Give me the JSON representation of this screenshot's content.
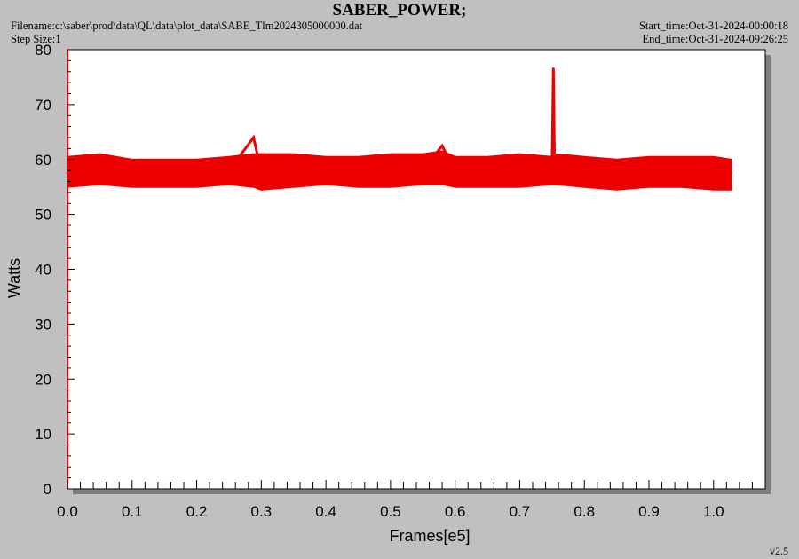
{
  "header": {
    "title": "SABER_POWER;",
    "filename": "Filename:c:\\saber\\prod\\data\\QL\\data\\plot_data\\SABE_Tlm2024305000000.dat",
    "step_size": "Step Size:1",
    "start_time": "Start_time:Oct-31-2024-00:00:18",
    "end_time": "End_time:Oct-31-2024-09:26:25"
  },
  "footer": {
    "version": "v2.5"
  },
  "colors": {
    "background": "#c0c0c0",
    "plot_area": "#ffffff",
    "shadow": "#7f7f7f",
    "series": "#ee0000"
  },
  "chart_data": {
    "type": "line",
    "title": "SABER_POWER;",
    "xlabel": "Frames[e5]",
    "ylabel": "Watts",
    "xlim": [
      0.0,
      1.08
    ],
    "ylim": [
      0,
      80
    ],
    "x_ticks": [
      "0.0",
      "0.1",
      "0.2",
      "0.3",
      "0.4",
      "0.5",
      "0.6",
      "0.7",
      "0.8",
      "0.9",
      "1.0"
    ],
    "y_ticks": [
      "0",
      "10",
      "20",
      "30",
      "40",
      "50",
      "60",
      "70",
      "80"
    ],
    "grid": false,
    "legend": "none",
    "series": [
      {
        "x": [
          0.0,
          0.05,
          0.1,
          0.15,
          0.2,
          0.25,
          0.288,
          0.3,
          0.35,
          0.4,
          0.45,
          0.5,
          0.55,
          0.58,
          0.6,
          0.65,
          0.7,
          0.75,
          0.752,
          0.754,
          0.8,
          0.85,
          0.9,
          0.95,
          1.0,
          1.027
        ],
        "y": [
          57.5,
          58.0,
          57.5,
          57.5,
          57.8,
          58.0,
          64.0,
          57.8,
          58.0,
          57.8,
          57.8,
          58.0,
          58.2,
          62.5,
          57.8,
          57.8,
          57.8,
          58.0,
          76.5,
          58.0,
          57.5,
          57.0,
          58.0,
          57.5,
          57.5,
          57.5
        ],
        "band_low": [
          55.0,
          55.5,
          55.0,
          55.0,
          55.0,
          55.5,
          55.0,
          54.5,
          55.0,
          55.5,
          55.0,
          55.0,
          55.5,
          55.5,
          55.0,
          55.0,
          55.0,
          55.5,
          55.5,
          55.5,
          55.0,
          54.5,
          55.0,
          55.0,
          54.5,
          54.5
        ],
        "band_high": [
          60.5,
          61.0,
          60.0,
          60.0,
          60.0,
          60.5,
          61.0,
          61.0,
          61.0,
          60.5,
          60.5,
          61.0,
          61.0,
          61.5,
          60.5,
          60.5,
          61.0,
          60.5,
          61.0,
          61.0,
          60.5,
          60.0,
          60.5,
          60.5,
          60.5,
          60.0
        ]
      }
    ]
  }
}
